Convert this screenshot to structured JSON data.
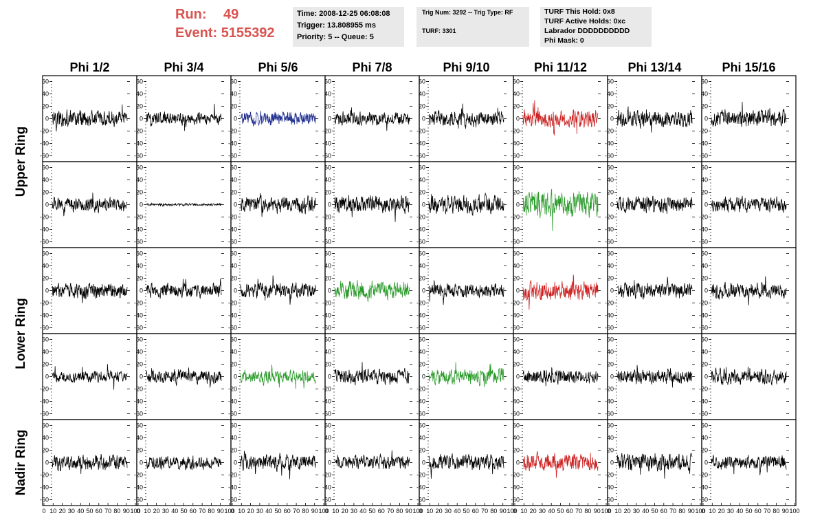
{
  "header": {
    "run_label": "Run:",
    "run_value": "49",
    "event_label": "Event:",
    "event_value": "5155392",
    "time": "Time: 2008-12-25 06:08:08",
    "trigger": "Trigger: 13.808955 ms",
    "priority_queue": "Priority: 5 -- Queue: 5",
    "trig_num_type": "Trig Num: 3292 -- Trig Type: RF",
    "turf": "TURF: 3301",
    "turf_this_hold": "TURF This Hold: 0x8",
    "turf_active_holds": "TURF Active Holds: 0xc",
    "labrador": "Labrador DDDDDDDDDD",
    "phi_mask": "Phi Mask: 0"
  },
  "chart_data": {
    "type": "line",
    "layout": "small-multiples",
    "columns": [
      "Phi 1/2",
      "Phi 3/4",
      "Phi 5/6",
      "Phi 7/8",
      "Phi 9/10",
      "Phi 11/12",
      "Phi 13/14",
      "Phi 15/16"
    ],
    "rows": [
      "Upper Ring",
      "Upper Ring",
      "Lower Ring",
      "Lower Ring",
      "Nadir Ring"
    ],
    "row_labels": [
      {
        "text": "Upper Ring",
        "spans_rows": [
          0,
          1
        ]
      },
      {
        "text": "Lower Ring",
        "spans_rows": [
          2,
          3
        ]
      },
      {
        "text": "Nadir Ring",
        "spans_rows": [
          4
        ]
      }
    ],
    "ylim": [
      -65,
      65
    ],
    "yticks": [
      -60,
      -40,
      -20,
      0,
      20,
      40,
      60
    ],
    "xlim": [
      0,
      100
    ],
    "xtick_labels": [
      "0",
      "10",
      "20",
      "30",
      "40",
      "50",
      "60",
      "70",
      "80",
      "90",
      "100"
    ],
    "colors": {
      "black": "#000000",
      "blue": "#1f2d8f",
      "red": "#cc2222",
      "green": "#2a9a2a"
    },
    "cell_colors": [
      [
        "black",
        "black",
        "blue",
        "black",
        "black",
        "red",
        "black",
        "black"
      ],
      [
        "black",
        "black",
        "black",
        "black",
        "black",
        "green",
        "black",
        "black"
      ],
      [
        "black",
        "black",
        "black",
        "green",
        "black",
        "red",
        "black",
        "black"
      ],
      [
        "black",
        "black",
        "green",
        "black",
        "green",
        "black",
        "black",
        "black"
      ],
      [
        "black",
        "black",
        "black",
        "black",
        "black",
        "red",
        "black",
        "black"
      ]
    ],
    "cell_amplitudes": [
      [
        14,
        11,
        12,
        12,
        14,
        15,
        15,
        14
      ],
      [
        12,
        2,
        14,
        15,
        16,
        22,
        14,
        13
      ],
      [
        13,
        12,
        14,
        15,
        12,
        16,
        13,
        13
      ],
      [
        10,
        12,
        11,
        13,
        13,
        12,
        12,
        13
      ],
      [
        13,
        11,
        13,
        12,
        14,
        16,
        16,
        12
      ]
    ],
    "samples_per_trace": 260
  }
}
